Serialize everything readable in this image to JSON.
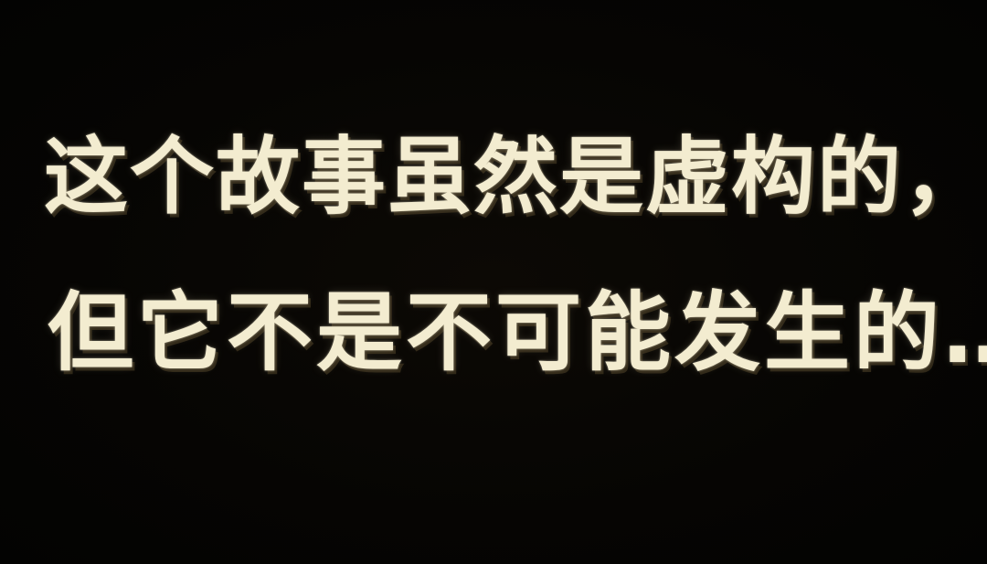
{
  "subtitle": {
    "line1": "这个故事虽然是虚构的，",
    "line2": "但它不是不可能发生的……"
  }
}
